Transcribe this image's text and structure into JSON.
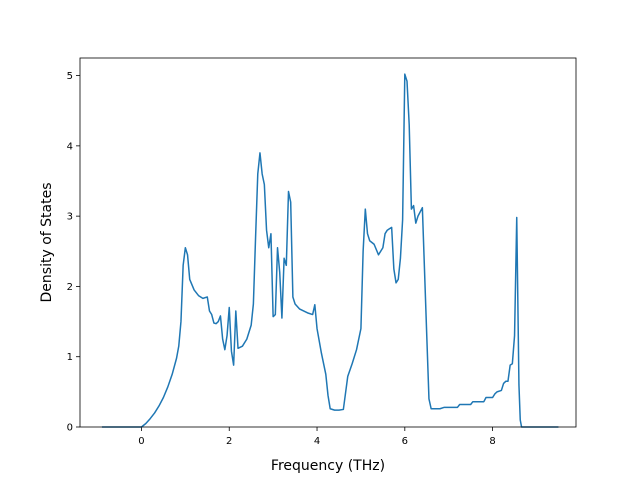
{
  "chart_data": {
    "type": "line",
    "title": "",
    "xlabel": "Frequency (THz)",
    "ylabel": "Density of States",
    "xlim": [
      -1.4,
      9.9
    ],
    "ylim": [
      0,
      5.25
    ],
    "xticks": [
      0,
      2,
      4,
      6,
      8
    ],
    "yticks": [
      0,
      1,
      2,
      3,
      4,
      5
    ],
    "grid": false,
    "series": [
      {
        "color": "#1f77b4",
        "x": [
          -0.9,
          -0.5,
          0.0,
          0.1,
          0.2,
          0.3,
          0.4,
          0.5,
          0.6,
          0.7,
          0.8,
          0.85,
          0.9,
          0.95,
          1.0,
          1.05,
          1.1,
          1.2,
          1.3,
          1.4,
          1.5,
          1.55,
          1.6,
          1.65,
          1.7,
          1.75,
          1.8,
          1.85,
          1.9,
          1.95,
          2.0,
          2.05,
          2.1,
          2.15,
          2.2,
          2.3,
          2.4,
          2.5,
          2.55,
          2.6,
          2.65,
          2.7,
          2.75,
          2.8,
          2.85,
          2.9,
          2.95,
          3.0,
          3.05,
          3.1,
          3.15,
          3.2,
          3.25,
          3.3,
          3.35,
          3.4,
          3.45,
          3.5,
          3.6,
          3.7,
          3.8,
          3.9,
          3.95,
          4.0,
          4.1,
          4.2,
          4.25,
          4.3,
          4.4,
          4.5,
          4.6,
          4.7,
          4.8,
          4.9,
          5.0,
          5.05,
          5.1,
          5.15,
          5.2,
          5.3,
          5.4,
          5.5,
          5.55,
          5.6,
          5.65,
          5.7,
          5.75,
          5.8,
          5.85,
          5.9,
          5.95,
          6.0,
          6.05,
          6.1,
          6.15,
          6.2,
          6.25,
          6.3,
          6.4,
          6.5,
          6.55,
          6.6,
          6.8,
          6.9,
          7.0,
          7.2,
          7.25,
          7.5,
          7.55,
          7.8,
          7.85,
          8.0,
          8.05,
          8.1,
          8.2,
          8.25,
          8.3,
          8.35,
          8.4,
          8.45,
          8.5,
          8.55,
          8.6,
          8.63,
          8.66,
          8.7,
          9.0,
          9.5
        ],
        "y": [
          0.0,
          0.0,
          0.0,
          0.05,
          0.12,
          0.2,
          0.3,
          0.42,
          0.57,
          0.75,
          0.98,
          1.15,
          1.5,
          2.3,
          2.55,
          2.45,
          2.1,
          1.95,
          1.87,
          1.83,
          1.85,
          1.65,
          1.6,
          1.48,
          1.47,
          1.5,
          1.58,
          1.25,
          1.1,
          1.3,
          1.7,
          1.08,
          0.88,
          1.65,
          1.12,
          1.15,
          1.25,
          1.45,
          1.75,
          2.7,
          3.6,
          3.9,
          3.6,
          3.45,
          2.8,
          2.55,
          2.75,
          1.57,
          1.6,
          2.55,
          2.2,
          1.55,
          2.4,
          2.3,
          3.35,
          3.2,
          1.85,
          1.75,
          1.68,
          1.65,
          1.62,
          1.6,
          1.74,
          1.4,
          1.05,
          0.75,
          0.45,
          0.26,
          0.24,
          0.24,
          0.25,
          0.72,
          0.9,
          1.1,
          1.4,
          2.5,
          3.1,
          2.75,
          2.65,
          2.6,
          2.45,
          2.55,
          2.75,
          2.8,
          2.82,
          2.84,
          2.25,
          2.05,
          2.1,
          2.4,
          2.95,
          5.02,
          4.92,
          4.3,
          3.1,
          3.15,
          2.9,
          3.0,
          3.12,
          1.3,
          0.4,
          0.26,
          0.26,
          0.28,
          0.28,
          0.28,
          0.32,
          0.32,
          0.36,
          0.36,
          0.42,
          0.42,
          0.47,
          0.5,
          0.52,
          0.62,
          0.65,
          0.65,
          0.88,
          0.9,
          1.3,
          2.98,
          0.6,
          0.1,
          0.0,
          0.0,
          0.0,
          0.0
        ]
      }
    ]
  }
}
